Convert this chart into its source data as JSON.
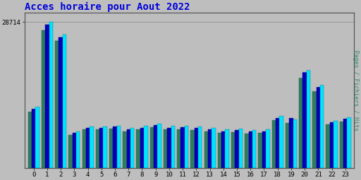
{
  "title": "Acces horaire pour Aout 2022",
  "title_color": "#0000dd",
  "title_fontsize": 10,
  "background_color": "#bebebe",
  "plot_bg_color": "#bebebe",
  "hours": [
    0,
    1,
    2,
    3,
    4,
    5,
    6,
    7,
    8,
    9,
    10,
    11,
    12,
    13,
    14,
    15,
    16,
    17,
    18,
    19,
    20,
    21,
    22,
    23
  ],
  "hits": [
    12000,
    28714,
    26200,
    7200,
    8100,
    8100,
    8300,
    7900,
    8200,
    8700,
    8200,
    8300,
    8100,
    7800,
    7500,
    7700,
    7400,
    7500,
    10200,
    9500,
    19200,
    16300,
    9200,
    9900
  ],
  "pages": [
    11000,
    27000,
    25000,
    6500,
    7500,
    7500,
    7700,
    7200,
    7500,
    8000,
    7500,
    7600,
    7400,
    7100,
    6800,
    7000,
    6700,
    6800,
    9400,
    8800,
    17600,
    15000,
    8500,
    9100
  ],
  "fichiers": [
    11600,
    28200,
    25700,
    6900,
    7900,
    7900,
    8100,
    7600,
    7900,
    8400,
    7900,
    8000,
    7800,
    7500,
    7200,
    7400,
    7100,
    7200,
    9800,
    9800,
    18700,
    15800,
    8900,
    9600
  ],
  "ylabel_right": "Pages / Fichiers / Hits",
  "ytick_label": "28714",
  "hits_color": "#00e5ff",
  "pages_color": "#2e7d5e",
  "fichiers_color": "#0000bb",
  "bar_width": 0.28,
  "group_width": 0.85,
  "ylim": [
    0,
    30500
  ],
  "yticks": [
    28714
  ],
  "grid_color": "#aaaaaa"
}
